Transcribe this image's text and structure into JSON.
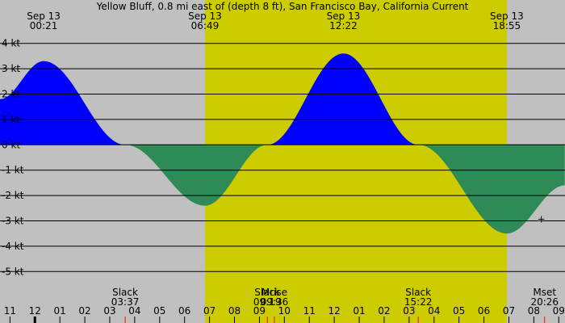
{
  "title": "Yellow Bluff, 0.8 mi east of (depth 8 ft), San Francisco Bay, California Current",
  "chart_data": {
    "type": "area",
    "title": "Yellow Bluff, 0.8 mi east of (depth 8 ft), San Francisco Bay, California Current",
    "units": "kt",
    "ylim": [
      -5.5,
      4.5
    ],
    "xlim_hours": [
      -1.4,
      21.25
    ],
    "grid": true,
    "colors": {
      "background": "#c0c0c0",
      "daylight": "#cccc00",
      "flood": "#0000ff",
      "ebb": "#2e8b57",
      "line": "#000000"
    },
    "daylight": {
      "start": 6.817,
      "end": 18.917
    },
    "y_ticks": [
      {
        "value": 4,
        "label": "4 kt"
      },
      {
        "value": 3,
        "label": "3 kt"
      },
      {
        "value": 2,
        "label": "2 kt"
      },
      {
        "value": 1,
        "label": "1 kt"
      },
      {
        "value": 0,
        "label": "0 kt"
      },
      {
        "value": -1,
        "label": "-1 kt"
      },
      {
        "value": -2,
        "label": "-2 kt"
      },
      {
        "value": -3,
        "label": "-3 kt"
      },
      {
        "value": -4,
        "label": "-4 kt"
      },
      {
        "value": -5,
        "label": "-5 kt"
      }
    ],
    "x_ticks": [
      {
        "hour": -1,
        "label": "11"
      },
      {
        "hour": 0,
        "label": "12"
      },
      {
        "hour": 1,
        "label": "01"
      },
      {
        "hour": 2,
        "label": "02"
      },
      {
        "hour": 3,
        "label": "03"
      },
      {
        "hour": 4,
        "label": "04"
      },
      {
        "hour": 5,
        "label": "05"
      },
      {
        "hour": 6,
        "label": "06"
      },
      {
        "hour": 7,
        "label": "07"
      },
      {
        "hour": 8,
        "label": "08"
      },
      {
        "hour": 9,
        "label": "09"
      },
      {
        "hour": 10,
        "label": "10"
      },
      {
        "hour": 11,
        "label": "11"
      },
      {
        "hour": 12,
        "label": "12"
      },
      {
        "hour": 13,
        "label": "01"
      },
      {
        "hour": 14,
        "label": "02"
      },
      {
        "hour": 15,
        "label": "03"
      },
      {
        "hour": 16,
        "label": "04"
      },
      {
        "hour": 17,
        "label": "05"
      },
      {
        "hour": 18,
        "label": "06"
      },
      {
        "hour": 19,
        "label": "07"
      },
      {
        "hour": 20,
        "label": "08"
      },
      {
        "hour": 21,
        "label": "09"
      }
    ],
    "top_labels": [
      {
        "hour": 0.35,
        "date": "Sep 13",
        "time": "00:21"
      },
      {
        "hour": 6.817,
        "date": "Sep 13",
        "time": "06:49"
      },
      {
        "hour": 12.367,
        "date": "Sep 13",
        "time": "12:22"
      },
      {
        "hour": 18.917,
        "date": "Sep 13",
        "time": "18:55"
      }
    ],
    "bottom_events": [
      {
        "hour": 3.617,
        "name": "Slack",
        "time": "03:37"
      },
      {
        "hour": 9.317,
        "name": "Slack",
        "time": "09:19"
      },
      {
        "hour": 9.6,
        "name": "Mrise",
        "time": "09:36"
      },
      {
        "hour": 15.367,
        "name": "Slack",
        "time": "15:22"
      },
      {
        "hour": 20.433,
        "name": "Mset",
        "time": "20:26"
      }
    ],
    "series": [
      {
        "x": [
          -1.4,
          0.35,
          3.617,
          6.817,
          9.317,
          12.367,
          15.367,
          18.917,
          21.25
        ],
        "y": [
          1.8,
          3.3,
          0,
          -2.4,
          0,
          3.6,
          0,
          -3.5,
          -1.6
        ]
      }
    ],
    "marker": {
      "hour": 20.3,
      "value": -2.9,
      "symbol": "+"
    }
  }
}
